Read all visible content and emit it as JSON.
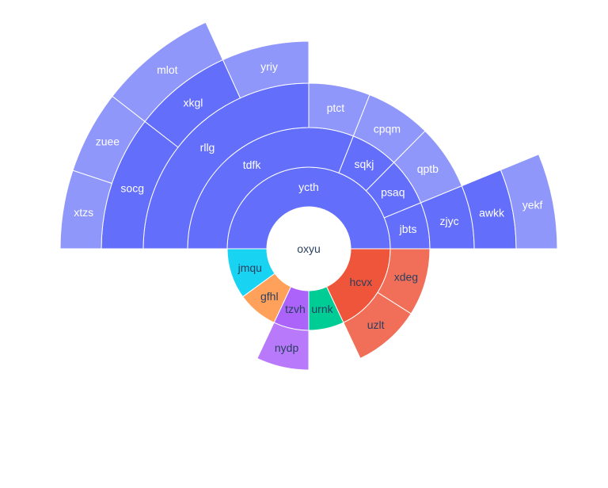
{
  "chart_data": {
    "type": "sunburst",
    "title": "",
    "root": "oxyu",
    "colors": {
      "ycth": "#636efa",
      "hcvx": "#ef553b",
      "urnk": "#00cc96",
      "tzvh": "#ab63fa",
      "gfhl": "#ffa15a",
      "jmqu": "#19d3f3"
    },
    "nodes": [
      {
        "id": "ycth",
        "label": "ycth",
        "parent": "oxyu",
        "start": 0,
        "end": 0.5
      },
      {
        "id": "jbts",
        "label": "jbts",
        "parent": "ycth",
        "start": 0,
        "end": 0.062
      },
      {
        "id": "psaq",
        "label": "psaq",
        "parent": "ycth",
        "start": 0.062,
        "end": 0.126
      },
      {
        "id": "sqkj",
        "label": "sqkj",
        "parent": "ycth",
        "start": 0.126,
        "end": 0.19
      },
      {
        "id": "tdfk",
        "label": "tdfk",
        "parent": "ycth",
        "start": 0.19,
        "end": 0.5
      },
      {
        "id": "zjyc",
        "label": "zjyc",
        "parent": "jbts",
        "start": 0,
        "end": 0.062
      },
      {
        "id": "qptb",
        "label": "qptb",
        "parent": "psaq",
        "start": 0.062,
        "end": 0.126
      },
      {
        "id": "cpqm",
        "label": "cpqm",
        "parent": "sqkj",
        "start": 0.126,
        "end": 0.19
      },
      {
        "id": "ptct",
        "label": "ptct",
        "parent": "tdfk",
        "start": 0.19,
        "end": 0.25
      },
      {
        "id": "rllg",
        "label": "rllg",
        "parent": "tdfk",
        "start": 0.25,
        "end": 0.5
      },
      {
        "id": "awkk",
        "label": "awkk",
        "parent": "zjyc",
        "start": 0,
        "end": 0.062
      },
      {
        "id": "yriy",
        "label": "yriy",
        "parent": "rllg",
        "start": 0.25,
        "end": 0.318
      },
      {
        "id": "xkgl",
        "label": "xkgl",
        "parent": "rllg",
        "start": 0.318,
        "end": 0.395
      },
      {
        "id": "socg",
        "label": "socg",
        "parent": "rllg",
        "start": 0.395,
        "end": 0.5
      },
      {
        "id": "yekf",
        "label": "yekf",
        "parent": "awkk",
        "start": 0,
        "end": 0.062
      },
      {
        "id": "mlot",
        "label": "mlot",
        "parent": "xkgl",
        "start": 0.318,
        "end": 0.395
      },
      {
        "id": "zuee",
        "label": "zuee",
        "parent": "socg",
        "start": 0.395,
        "end": 0.449
      },
      {
        "id": "xtzs",
        "label": "xtzs",
        "parent": "socg",
        "start": 0.449,
        "end": 0.5
      },
      {
        "id": "hcvx",
        "label": "hcvx",
        "parent": "oxyu",
        "start": -0.18,
        "end": 0
      },
      {
        "id": "xdeg",
        "label": "xdeg",
        "parent": "hcvx",
        "start": -0.09,
        "end": 0
      },
      {
        "id": "uzlt",
        "label": "uzlt",
        "parent": "hcvx",
        "start": -0.18,
        "end": -0.09
      },
      {
        "id": "urnk",
        "label": "urnk",
        "parent": "oxyu",
        "start": -0.25,
        "end": -0.18
      },
      {
        "id": "tzvh",
        "label": "tzvh",
        "parent": "oxyu",
        "start": -0.32,
        "end": -0.25
      },
      {
        "id": "nydp",
        "label": "nydp",
        "parent": "tzvh",
        "start": -0.32,
        "end": -0.25
      },
      {
        "id": "gfhl",
        "label": "gfhl",
        "parent": "oxyu",
        "start": -0.4,
        "end": -0.32
      },
      {
        "id": "jmqu",
        "label": "jmqu",
        "parent": "oxyu",
        "start": -0.5,
        "end": -0.4
      }
    ]
  }
}
